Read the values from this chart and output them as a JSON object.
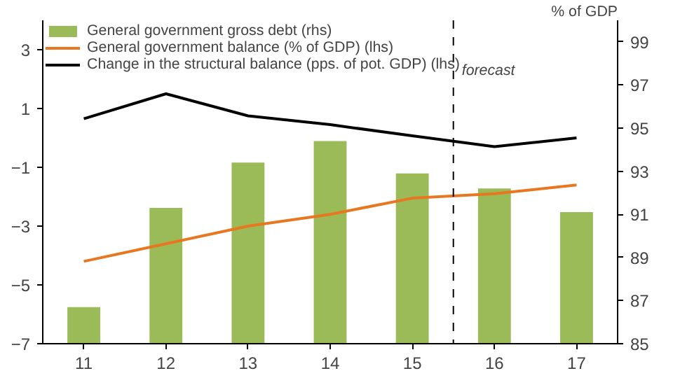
{
  "chart_data": {
    "type": "bar",
    "x": [
      11,
      12,
      13,
      14,
      15,
      16,
      17
    ],
    "xlim": [
      10.5,
      17.5
    ],
    "xticks": [
      11,
      12,
      13,
      14,
      15,
      16,
      17
    ],
    "ylim": [
      -7,
      4
    ],
    "yticks": [
      -7,
      -5,
      -3,
      -1,
      1,
      3
    ],
    "y2lim": [
      85,
      100
    ],
    "y2ticks": [
      85,
      87,
      89,
      91,
      93,
      95,
      97,
      99
    ],
    "y2label": "% of GDP",
    "series": [
      {
        "name": "General government gross debt (rhs)",
        "axis": "y2",
        "color": "#9bbb59",
        "values": [
          86.7,
          91.3,
          93.4,
          94.4,
          92.9,
          92.2,
          91.1
        ]
      },
      {
        "name": "General government balance (% of GDP) (lhs)",
        "type": "line",
        "color": "#e87722",
        "values": [
          -4.2,
          -3.6,
          -3.0,
          -2.6,
          -2.05,
          -1.9,
          -1.6
        ]
      },
      {
        "name": "Change in the structural balance (pps. of pot. GDP) (lhs)",
        "type": "line",
        "color": "#000000",
        "values": [
          0.65,
          1.5,
          0.75,
          0.45,
          0.07,
          -0.3,
          0.0
        ]
      }
    ],
    "ref_lines": [
      {
        "axis": "x",
        "value": 15.5,
        "label": "forecast",
        "color": "#000000",
        "line_style": "dashed"
      }
    ],
    "legend": "top left",
    "grid": false
  }
}
